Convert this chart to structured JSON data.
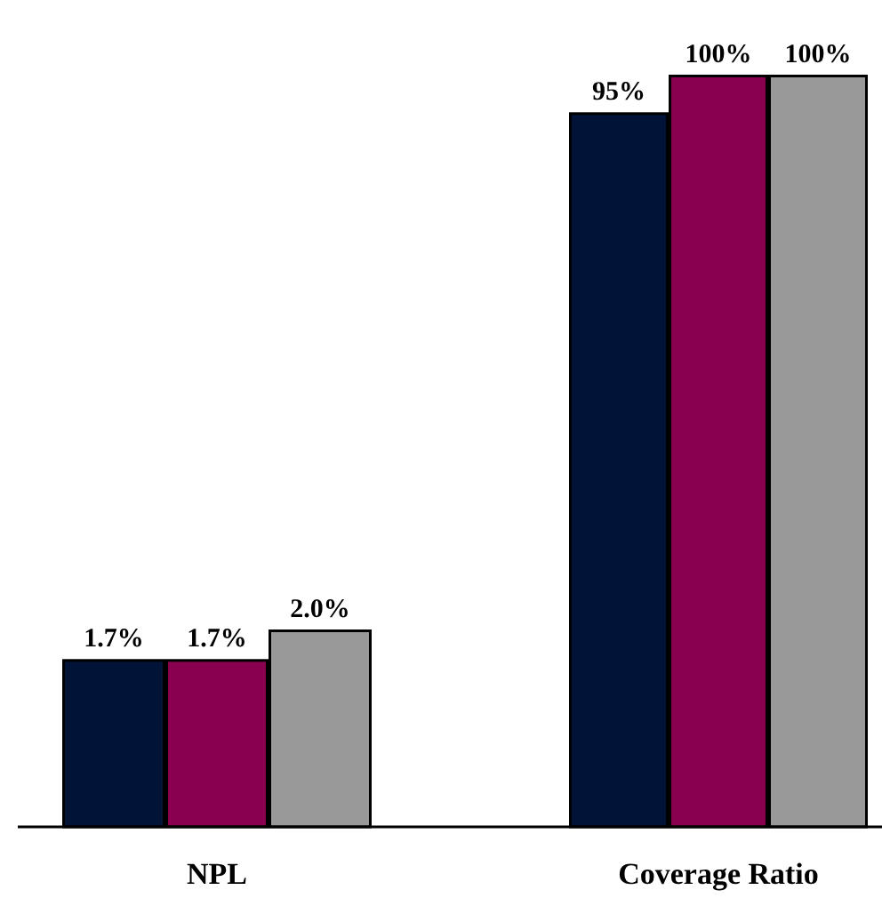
{
  "chart_data": [
    {
      "type": "bar",
      "categories": [
        null,
        "NPL",
        null
      ],
      "data_labels": true,
      "values": [
        1.7,
        1.7,
        2.0
      ],
      "colors": [
        "#021338",
        "#88004f",
        "#999999"
      ],
      "value_labels": [
        "1.7%",
        "1.7%",
        "2.0%"
      ]
    },
    {
      "type": "bar",
      "categories": [
        null,
        "Coverage Ratio",
        null
      ],
      "data_labels": true,
      "values": [
        95,
        100,
        100
      ],
      "colors": [
        "#021338",
        "#88004f",
        "#999999"
      ],
      "value_labels": [
        "95%",
        "100%",
        "100%"
      ]
    }
  ]
}
